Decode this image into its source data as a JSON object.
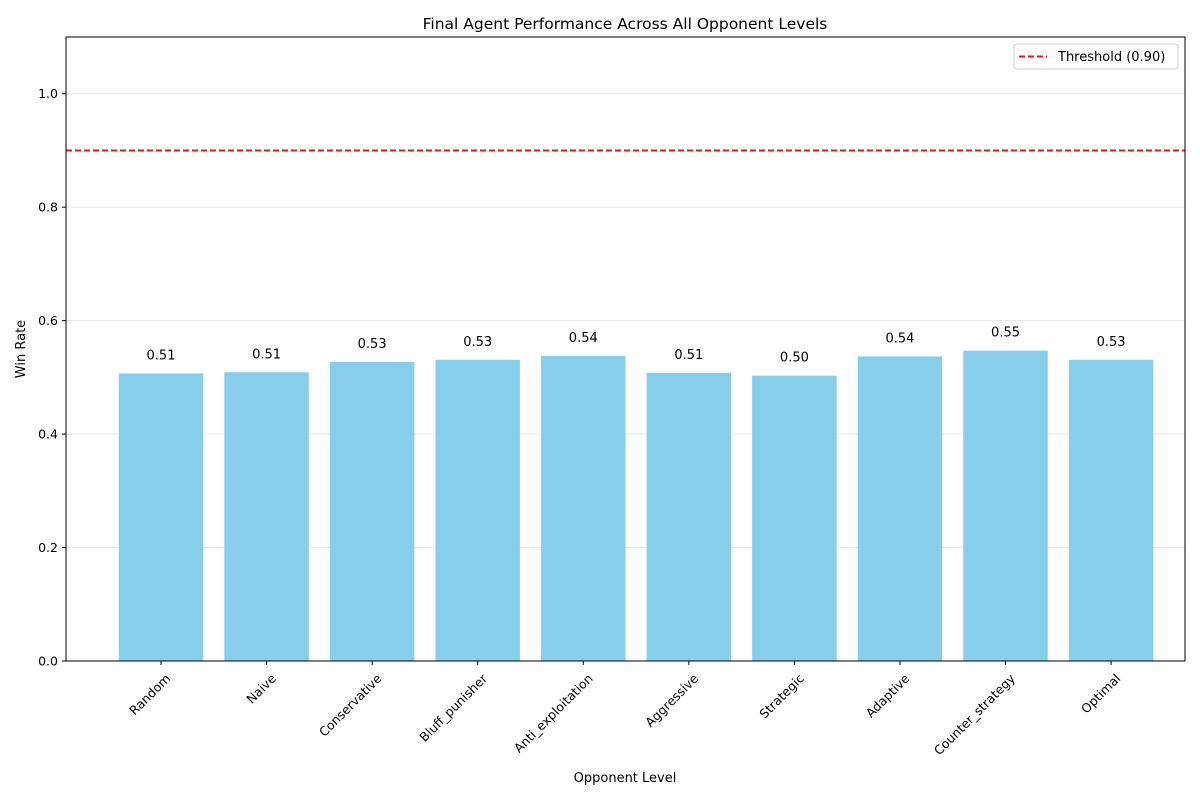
{
  "chart_data": {
    "type": "bar",
    "title": "Final Agent Performance Across All Opponent Levels",
    "xlabel": "Opponent Level",
    "ylabel": "Win Rate",
    "categories": [
      "Random",
      "Naive",
      "Conservative",
      "Bluff_punisher",
      "Anti_exploitation",
      "Aggressive",
      "Strategic",
      "Adaptive",
      "Counter_strategy",
      "Optimal"
    ],
    "values": [
      0.507,
      0.509,
      0.527,
      0.531,
      0.538,
      0.508,
      0.503,
      0.537,
      0.547,
      0.531
    ],
    "data_labels": [
      "0.51",
      "0.51",
      "0.53",
      "0.53",
      "0.54",
      "0.51",
      "0.50",
      "0.54",
      "0.55",
      "0.53"
    ],
    "ylim": [
      0,
      1.1
    ],
    "yticks": [
      "0.0",
      "0.2",
      "0.4",
      "0.6",
      "0.8",
      "1.0"
    ],
    "ytick_values": [
      0,
      0.2,
      0.4,
      0.6,
      0.8,
      1.0
    ],
    "threshold": {
      "value": 0.9,
      "label": "Threshold (0.90)",
      "color": "#e31a1c"
    },
    "bar_color": "#87ceeb",
    "grid": "y",
    "legend_position": "top-right",
    "tick_rotation": 45
  }
}
